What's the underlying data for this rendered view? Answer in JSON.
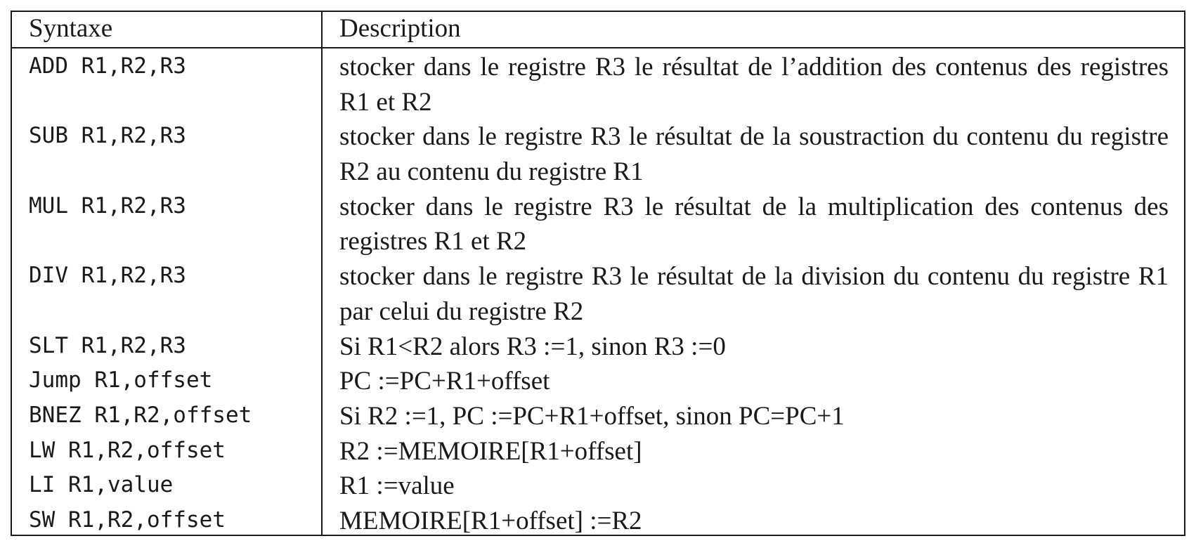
{
  "table": {
    "headers": {
      "syntax": "Syntaxe",
      "description": "Description"
    },
    "rows": [
      {
        "syntax": "ADD R1,R2,R3",
        "description": "stocker dans le registre R3 le résultat de l’addition des contenus des registres R1 et R2"
      },
      {
        "syntax": "SUB R1,R2,R3",
        "description": "stocker dans le registre R3 le résultat de la soustraction du contenu du registre R2 au contenu du registre R1"
      },
      {
        "syntax": "MUL R1,R2,R3",
        "description": "stocker dans le registre R3 le résultat de la multiplication des contenus des registres R1 et R2"
      },
      {
        "syntax": "DIV R1,R2,R3",
        "description": "stocker dans le registre R3 le résultat de la division du contenu du registre R1 par celui du registre R2"
      },
      {
        "syntax": "SLT R1,R2,R3",
        "description": "Si R1<R2 alors R3 :=1, sinon R3 :=0"
      },
      {
        "syntax": "Jump R1,offset",
        "description": "PC :=PC+R1+offset"
      },
      {
        "syntax": "BNEZ R1,R2,offset",
        "description": "Si R2 :=1, PC :=PC+R1+offset, sinon PC=PC+1"
      },
      {
        "syntax": "LW R1,R2,offset",
        "description": "R2 :=MEMOIRE[R1+offset]"
      },
      {
        "syntax": "LI R1,value",
        "description": "R1 :=value"
      },
      {
        "syntax": "SW R1,R2,offset",
        "description": "MEMOIRE[R1+offset] :=R2"
      }
    ]
  }
}
